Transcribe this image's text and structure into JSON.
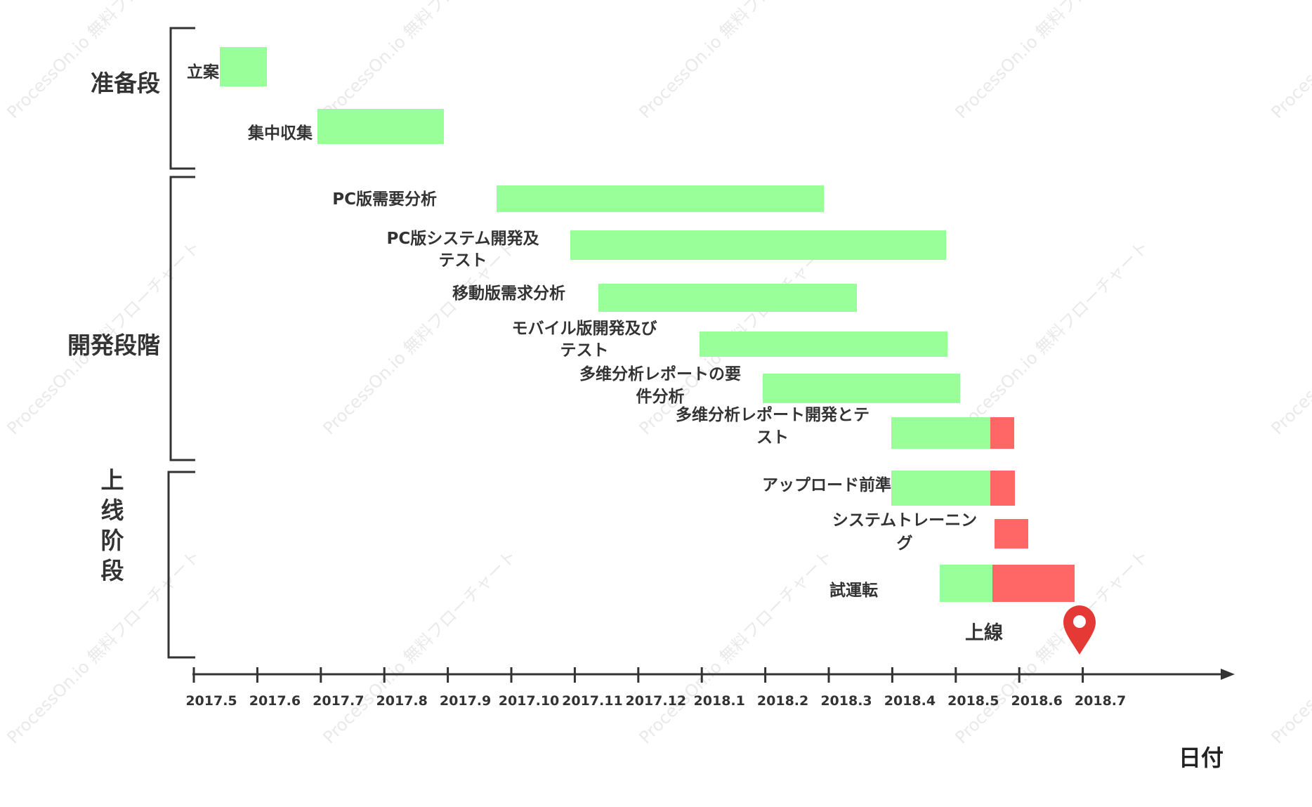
{
  "colors": {
    "done": "#99ff99",
    "remaining": "#ff6666",
    "axis": "#333333",
    "text": "#333333",
    "marker": "#e53935"
  },
  "watermark": "ProcessOn.io 無料フローチャート",
  "axis": {
    "title": "日付",
    "ticks": [
      "2017.5",
      "2017.6",
      "2017.7",
      "2017.8",
      "2017.9",
      "2017.10",
      "2017.11",
      "2017.12",
      "2018.1",
      "2018.2",
      "2018.3",
      "2018.4",
      "2018.5",
      "2018.6",
      "2018.7"
    ]
  },
  "phases": [
    {
      "label": "准备段"
    },
    {
      "label": "開発段階"
    },
    {
      "label": "上线阶段"
    }
  ],
  "chart_data": {
    "type": "gantt",
    "x_unit": "month",
    "tasks": [
      {
        "name": [
          "立案"
        ],
        "phase": "准备段",
        "start": "2017.5",
        "green_end": "2017.5",
        "red_end": null
      },
      {
        "name": [
          "集中収集"
        ],
        "phase": "准备段",
        "start": "2017.6",
        "green_end": "2017.8",
        "red_end": null
      },
      {
        "name": [
          "PC版需要分析"
        ],
        "phase": "開発段階",
        "start": "2017.9",
        "green_end": "2018.2",
        "red_end": null
      },
      {
        "name": [
          "PC版システム開発及",
          "テスト"
        ],
        "phase": "開発段階",
        "start": "2017.10",
        "green_end": "2018.4",
        "red_end": null
      },
      {
        "name": [
          "移動版需求分析"
        ],
        "phase": "開発段階",
        "start": "2017.11",
        "green_end": "2018.3",
        "red_end": null
      },
      {
        "name": [
          "モバイル版開発及び",
          "テスト"
        ],
        "phase": "開発段階",
        "start": "2018.1",
        "green_end": "2018.4",
        "red_end": null
      },
      {
        "name": [
          "多维分析レポートの要",
          "件分析"
        ],
        "phase": "開発段階",
        "start": "2018.2",
        "green_end": "2018.5",
        "red_end": null
      },
      {
        "name": [
          "多维分析レポート開発とテ",
          "スト"
        ],
        "phase": "開発段階",
        "start": "2018.3",
        "green_end": "2018.5",
        "red_end": "2018.5"
      },
      {
        "name": [
          "アップロード前準"
        ],
        "phase": "上线阶段",
        "start": "2018.3",
        "green_end": "2018.5",
        "red_end": "2018.5"
      },
      {
        "name": [
          "システムトレーニン",
          "グ"
        ],
        "phase": "上线阶段",
        "start": "2018.5",
        "green_end": null,
        "red_end": "2018.5"
      },
      {
        "name": [
          "試運転"
        ],
        "phase": "上线阶段",
        "start": "2018.4",
        "green_end": "2018.5",
        "red_end": "2018.6"
      }
    ],
    "milestone": {
      "label": "上線",
      "date": "2018.6"
    }
  }
}
